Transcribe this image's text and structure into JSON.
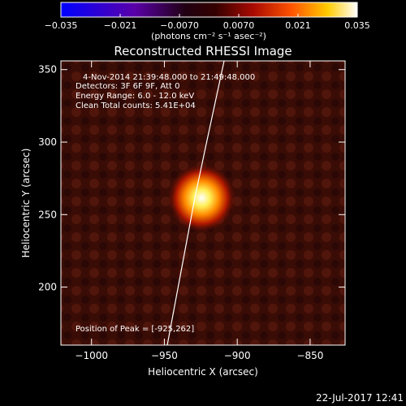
{
  "colorbar": {
    "ticks": [
      "−0.035",
      "−0.021",
      "−0.0070",
      "0.0070",
      "0.021",
      "0.035"
    ],
    "unit_label": "(photons cm⁻² s⁻¹ asec⁻²)",
    "range": [
      -0.035,
      0.035
    ]
  },
  "annotations": {
    "time_range": "4-Nov-2014 21:39:48.000 to 21:49:48.000",
    "detectors": "Detectors: 3F 6F 9F, Att 0",
    "energy": "Energy Range: 6.0 - 12.0 keV",
    "clean": "Clean    Total counts: 5.41E+04",
    "peak": "Position of Peak = [-925,262]"
  },
  "footer": {
    "date": "22-Jul-2017 12:41"
  },
  "chart_data": {
    "type": "heatmap",
    "title": "Reconstructed RHESSI Image",
    "xlabel": "Heliocentric X (arcsec)",
    "ylabel": "Heliocentric Y (arcsec)",
    "xlim": [
      -1021,
      -826
    ],
    "ylim": [
      160,
      356
    ],
    "x_ticks": [
      -1000,
      -950,
      -900,
      -850
    ],
    "y_ticks": [
      200,
      250,
      300,
      350
    ],
    "x_tick_labels": [
      "−1000",
      "−950",
      "−900",
      "−850"
    ],
    "y_tick_labels": [
      "200",
      "250",
      "300",
      "350"
    ],
    "peak": [
      -925,
      262
    ],
    "limb": [
      [
        -948,
        160
      ],
      [
        -935,
        230
      ],
      [
        -929,
        262
      ],
      [
        -921,
        300
      ],
      [
        -909,
        356
      ]
    ],
    "colormap": [
      "#0000ff",
      "#6a00c8",
      "#2a0016",
      "#000000",
      "#660000",
      "#cc2200",
      "#ff8800",
      "#ffee00",
      "#ffffff"
    ]
  }
}
